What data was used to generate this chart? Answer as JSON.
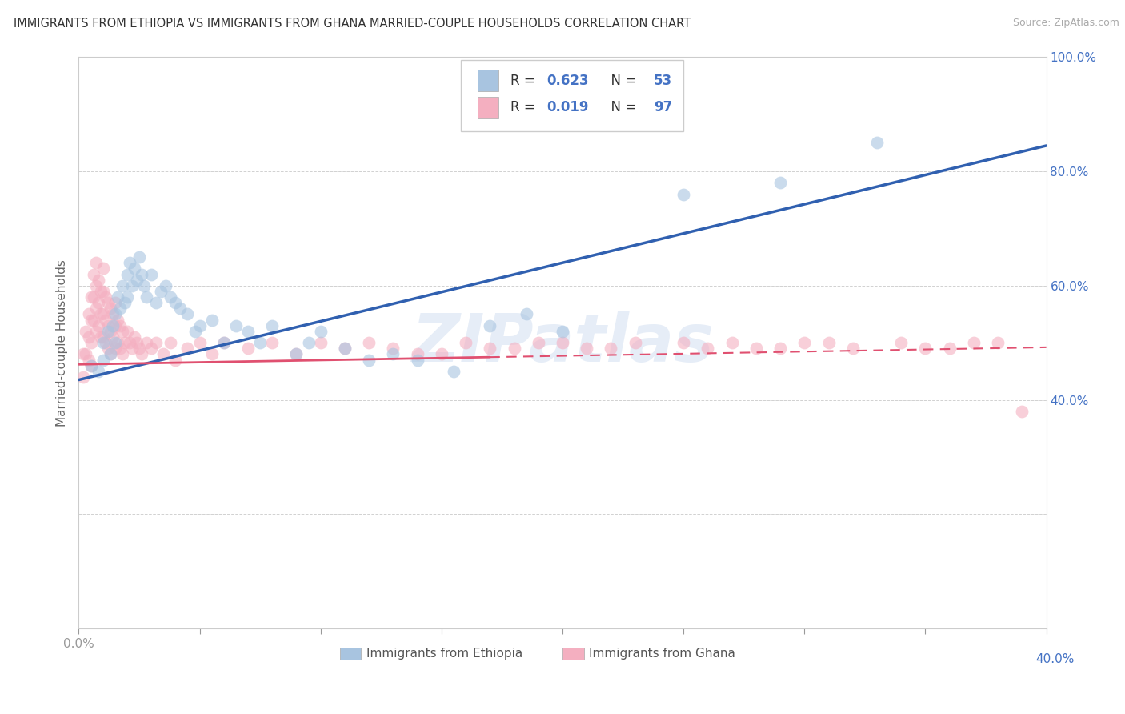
{
  "title": "IMMIGRANTS FROM ETHIOPIA VS IMMIGRANTS FROM GHANA MARRIED-COUPLE HOUSEHOLDS CORRELATION CHART",
  "source": "Source: ZipAtlas.com",
  "ylabel": "Married-couple Households",
  "xlim": [
    0.0,
    0.4
  ],
  "ylim": [
    0.0,
    1.0
  ],
  "xticks": [
    0.0,
    0.05,
    0.1,
    0.15,
    0.2,
    0.25,
    0.3,
    0.35,
    0.4
  ],
  "yticks": [
    0.0,
    0.2,
    0.4,
    0.6,
    0.8,
    1.0
  ],
  "color_ethiopia": "#a8c4e0",
  "color_ghana": "#f4afc0",
  "color_trend_ethiopia": "#3060b0",
  "color_trend_ghana": "#e05070",
  "watermark": "ZIPatlas",
  "ethiopia_x": [
    0.005,
    0.008,
    0.01,
    0.01,
    0.012,
    0.013,
    0.014,
    0.015,
    0.015,
    0.016,
    0.017,
    0.018,
    0.019,
    0.02,
    0.02,
    0.021,
    0.022,
    0.023,
    0.024,
    0.025,
    0.026,
    0.027,
    0.028,
    0.03,
    0.032,
    0.034,
    0.036,
    0.038,
    0.04,
    0.042,
    0.045,
    0.048,
    0.05,
    0.055,
    0.06,
    0.065,
    0.07,
    0.075,
    0.08,
    0.09,
    0.095,
    0.1,
    0.11,
    0.12,
    0.13,
    0.14,
    0.155,
    0.17,
    0.185,
    0.2,
    0.25,
    0.29,
    0.33
  ],
  "ethiopia_y": [
    0.46,
    0.45,
    0.5,
    0.47,
    0.52,
    0.48,
    0.53,
    0.55,
    0.5,
    0.58,
    0.56,
    0.6,
    0.57,
    0.62,
    0.58,
    0.64,
    0.6,
    0.63,
    0.61,
    0.65,
    0.62,
    0.6,
    0.58,
    0.62,
    0.57,
    0.59,
    0.6,
    0.58,
    0.57,
    0.56,
    0.55,
    0.52,
    0.53,
    0.54,
    0.5,
    0.53,
    0.52,
    0.5,
    0.53,
    0.48,
    0.5,
    0.52,
    0.49,
    0.47,
    0.48,
    0.47,
    0.45,
    0.53,
    0.55,
    0.52,
    0.76,
    0.78,
    0.85
  ],
  "ghana_x": [
    0.002,
    0.002,
    0.003,
    0.003,
    0.004,
    0.004,
    0.004,
    0.005,
    0.005,
    0.005,
    0.005,
    0.006,
    0.006,
    0.006,
    0.007,
    0.007,
    0.007,
    0.007,
    0.008,
    0.008,
    0.008,
    0.009,
    0.009,
    0.009,
    0.01,
    0.01,
    0.01,
    0.01,
    0.011,
    0.011,
    0.011,
    0.012,
    0.012,
    0.012,
    0.013,
    0.013,
    0.013,
    0.014,
    0.014,
    0.015,
    0.015,
    0.015,
    0.016,
    0.016,
    0.017,
    0.017,
    0.018,
    0.018,
    0.019,
    0.02,
    0.021,
    0.022,
    0.023,
    0.024,
    0.025,
    0.026,
    0.028,
    0.03,
    0.032,
    0.035,
    0.038,
    0.04,
    0.045,
    0.05,
    0.055,
    0.06,
    0.07,
    0.08,
    0.09,
    0.1,
    0.11,
    0.12,
    0.14,
    0.16,
    0.18,
    0.2,
    0.22,
    0.25,
    0.28,
    0.3,
    0.32,
    0.34,
    0.36,
    0.38,
    0.13,
    0.15,
    0.17,
    0.19,
    0.21,
    0.23,
    0.26,
    0.27,
    0.29,
    0.31,
    0.35,
    0.37,
    0.39
  ],
  "ghana_y": [
    0.48,
    0.44,
    0.52,
    0.48,
    0.55,
    0.51,
    0.47,
    0.58,
    0.54,
    0.5,
    0.46,
    0.62,
    0.58,
    0.54,
    0.64,
    0.6,
    0.56,
    0.52,
    0.61,
    0.57,
    0.53,
    0.59,
    0.55,
    0.51,
    0.63,
    0.59,
    0.55,
    0.51,
    0.58,
    0.54,
    0.5,
    0.57,
    0.53,
    0.49,
    0.56,
    0.52,
    0.48,
    0.55,
    0.51,
    0.57,
    0.53,
    0.49,
    0.54,
    0.5,
    0.53,
    0.49,
    0.52,
    0.48,
    0.5,
    0.52,
    0.5,
    0.49,
    0.51,
    0.5,
    0.49,
    0.48,
    0.5,
    0.49,
    0.5,
    0.48,
    0.5,
    0.47,
    0.49,
    0.5,
    0.48,
    0.5,
    0.49,
    0.5,
    0.48,
    0.5,
    0.49,
    0.5,
    0.48,
    0.5,
    0.49,
    0.5,
    0.49,
    0.5,
    0.49,
    0.5,
    0.49,
    0.5,
    0.49,
    0.5,
    0.49,
    0.48,
    0.49,
    0.5,
    0.49,
    0.5,
    0.49,
    0.5,
    0.49,
    0.5,
    0.49,
    0.5,
    0.38
  ],
  "trend_eth_x0": 0.0,
  "trend_eth_y0": 0.435,
  "trend_eth_x1": 0.4,
  "trend_eth_y1": 0.845,
  "trend_gha_x0": 0.0,
  "trend_gha_y0": 0.462,
  "trend_gha_x1": 0.4,
  "trend_gha_y1": 0.492
}
